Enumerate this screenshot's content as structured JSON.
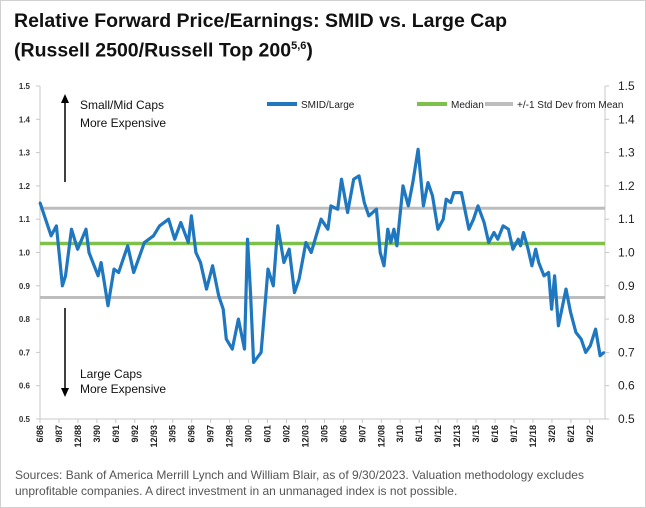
{
  "title_line1": "Relative Forward Price/Earnings: SMID vs. Large Cap",
  "title_line2": "(Russell 2500/Russell Top 200",
  "title_sup": "5,6",
  "title_close": ")",
  "sources": "Sources: Bank of America Merrill Lynch and William Blair, as of 9/30/2023. Valuation methodology excludes unprofitable companies. A direct investment in an unmanaged index is not possible.",
  "annotations": {
    "up_line1": "Small/Mid Caps",
    "up_line2": "More Expensive",
    "down_line1": "Large Caps",
    "down_line2": "More Expensive"
  },
  "chart_data": {
    "type": "line",
    "xlim": [
      1986.42,
      2023.67
    ],
    "ylim": [
      0.5,
      1.5
    ],
    "y_ticks": [
      "0.5",
      "0.6",
      "0.7",
      "0.8",
      "0.9",
      "1.0",
      "1.1",
      "1.2",
      "1.3",
      "1.4",
      "1.5"
    ],
    "x_tick_labels": [
      "6/86",
      "9/87",
      "12/88",
      "3/90",
      "6/91",
      "9/92",
      "12/93",
      "3/95",
      "6/96",
      "9/97",
      "12/98",
      "3/00",
      "6/01",
      "9/02",
      "12/03",
      "3/05",
      "6/06",
      "9/07",
      "12/08",
      "3/10",
      "6/11",
      "9/12",
      "12/13",
      "3/15",
      "6/16",
      "9/17",
      "12/18",
      "3/20",
      "6/21",
      "9/22"
    ],
    "legend_position": "top-right",
    "grid": false,
    "colors": {
      "smid_large": "#1f77c0",
      "median": "#7ec04a",
      "std": "#bdbdbd"
    },
    "series": [
      {
        "name": "SMID/Large",
        "x": [
          1986.42,
          1987.15,
          1987.5,
          1987.9,
          1988.1,
          1988.5,
          1988.9,
          1989.45,
          1989.65,
          1990.25,
          1990.45,
          1990.9,
          1991.3,
          1991.6,
          1992.2,
          1992.6,
          1993.3,
          1993.9,
          1994.3,
          1994.9,
          1995.3,
          1995.7,
          1996.2,
          1996.4,
          1996.7,
          1997.0,
          1997.4,
          1997.8,
          1998.2,
          1998.5,
          1998.7,
          1999.1,
          1999.5,
          1999.9,
          2000.1,
          2000.3,
          2000.5,
          2001.0,
          2001.45,
          2001.8,
          2002.1,
          2002.5,
          2002.85,
          2003.2,
          2003.5,
          2003.95,
          2004.3,
          2004.95,
          2005.4,
          2005.6,
          2006.05,
          2006.3,
          2006.7,
          2007.1,
          2007.45,
          2007.8,
          2008.1,
          2008.6,
          2008.85,
          2009.1,
          2009.35,
          2009.55,
          2009.75,
          2009.95,
          2010.35,
          2010.7,
          2011.0,
          2011.35,
          2011.7,
          2012.0,
          2012.3,
          2012.65,
          2013.0,
          2013.2,
          2013.5,
          2013.7,
          2014.2,
          2014.7,
          2015.0,
          2015.3,
          2015.7,
          2016.0,
          2016.35,
          2016.6,
          2016.95,
          2017.3,
          2017.6,
          2017.95,
          2018.1,
          2018.3,
          2018.6,
          2018.85,
          2019.1,
          2019.3,
          2019.65,
          2019.95,
          2020.15,
          2020.35,
          2020.6,
          2021.1,
          2021.4,
          2021.75,
          2022.1,
          2022.4,
          2022.7,
          2023.05,
          2023.35,
          2023.6
        ],
        "values": [
          1.15,
          1.05,
          1.08,
          0.9,
          0.93,
          1.07,
          1.01,
          1.07,
          1.0,
          0.93,
          0.97,
          0.84,
          0.95,
          0.94,
          1.02,
          0.94,
          1.03,
          1.05,
          1.08,
          1.1,
          1.04,
          1.09,
          1.03,
          1.11,
          1.0,
          0.97,
          0.89,
          0.96,
          0.87,
          0.83,
          0.74,
          0.71,
          0.8,
          0.71,
          1.04,
          0.88,
          0.67,
          0.7,
          0.95,
          0.9,
          1.08,
          0.97,
          1.01,
          0.88,
          0.92,
          1.03,
          1.0,
          1.1,
          1.07,
          1.14,
          1.13,
          1.22,
          1.12,
          1.22,
          1.23,
          1.15,
          1.11,
          1.13,
          1.0,
          0.96,
          1.07,
          1.03,
          1.07,
          1.02,
          1.2,
          1.14,
          1.21,
          1.31,
          1.14,
          1.21,
          1.17,
          1.07,
          1.1,
          1.16,
          1.15,
          1.18,
          1.18,
          1.07,
          1.1,
          1.14,
          1.09,
          1.03,
          1.06,
          1.04,
          1.08,
          1.07,
          1.01,
          1.04,
          1.02,
          1.06,
          1.01,
          0.96,
          1.01,
          0.97,
          0.93,
          0.94,
          0.83,
          0.93,
          0.78,
          0.89,
          0.82,
          0.76,
          0.74,
          0.7,
          0.72,
          0.77,
          0.69,
          0.7
        ]
      },
      {
        "name": "Median",
        "value": 1.027
      },
      {
        "name": "+/-1 Std Dev from Mean",
        "values": [
          1.133,
          0.865
        ]
      }
    ]
  }
}
